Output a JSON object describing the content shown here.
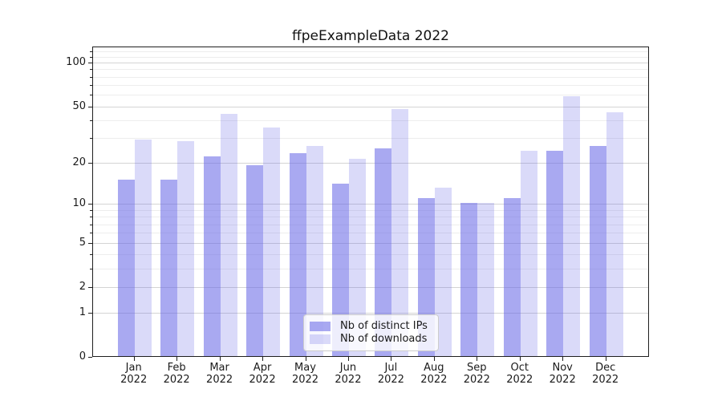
{
  "chart_data": {
    "type": "bar",
    "title": "ffpeExampleData 2022",
    "categories": [
      "Jan",
      "Feb",
      "Mar",
      "Apr",
      "May",
      "Jun",
      "Jul",
      "Aug",
      "Sep",
      "Oct",
      "Nov",
      "Dec"
    ],
    "x_year": "2022",
    "series": [
      {
        "name": "Nb of distinct IPs",
        "color": "rgba(102,102,230,0.56)",
        "values": [
          15,
          15,
          22,
          19,
          23,
          14,
          25,
          11,
          10,
          11,
          24,
          26
        ]
      },
      {
        "name": "Nb of downloads",
        "color": "rgba(102,102,230,0.24)",
        "values": [
          29,
          28,
          44,
          35,
          26,
          21,
          47,
          13,
          10,
          24,
          58,
          45
        ]
      }
    ],
    "yscale": "log10(1+v)",
    "y_major_ticks": [
      0,
      1,
      2,
      5,
      10,
      20,
      50,
      100
    ],
    "y_minor_ticks": [
      3,
      4,
      6,
      7,
      8,
      9,
      30,
      40,
      60,
      70,
      80,
      90,
      110,
      120
    ],
    "ylim": [
      0,
      129
    ],
    "xlabel": "",
    "ylabel": "",
    "grid": "horizontal",
    "legend_position": "lower center"
  },
  "colors": {
    "accent_dark_bar": "rgba(102,102,230,0.56)",
    "accent_light_bar": "rgba(102,102,230,0.24)",
    "grid_major": "#d4d4d4",
    "grid_minor": "#ededed",
    "frame": "#1f1f1f",
    "text": "#1a1a1a",
    "background": "#ffffff"
  }
}
